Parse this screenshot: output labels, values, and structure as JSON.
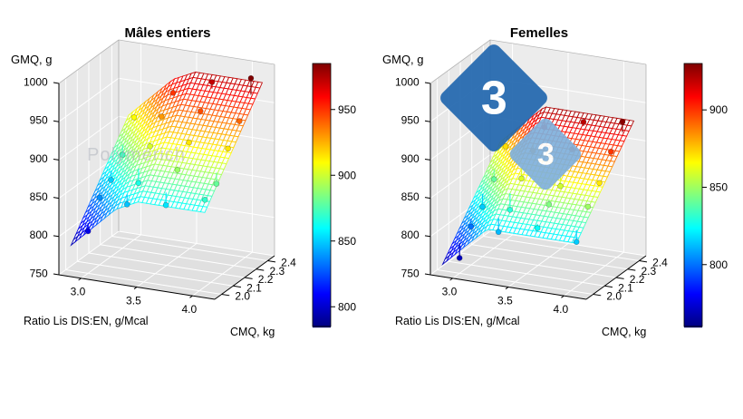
{
  "style": {
    "background": "#ffffff",
    "wall": "#e8e8e8",
    "back_wall": "#ececec",
    "floor": "#e0e0e0",
    "grid_line": "#ffffff",
    "axis_color": "#000000",
    "logo_blue": "#2166ae",
    "logo_light_blue": "#7fb0dc",
    "watermark_gray": "#a9aeb8"
  },
  "watermarks": {
    "brand_text": "Polymerich",
    "logo_digit_big": "3",
    "logo_digit_small": "3"
  },
  "chart_data": [
    {
      "type": "surface",
      "title": "Mâles entiers",
      "xlabel": "Ratio Lis DIS:EN, g/Mcal",
      "ylabel": "CMQ, kg",
      "zlabel": "GMQ, g",
      "xlim": [
        2.8,
        4.2
      ],
      "ylim": [
        1.94,
        2.46
      ],
      "zlim": [
        750,
        1000
      ],
      "x_tick_values": [
        3.0,
        3.5,
        4.0
      ],
      "x_tick_labels": [
        "3.0",
        "3.5",
        "4.0"
      ],
      "y_tick_values": [
        2.0,
        2.1,
        2.2,
        2.3,
        2.4
      ],
      "y_tick_labels": [
        "2.0",
        "2.1",
        "2.2",
        "2.3",
        "2.4"
      ],
      "z_tick_values": [
        750,
        800,
        850,
        900,
        950,
        1000
      ],
      "z_tick_labels": [
        "750",
        "800",
        "850",
        "900",
        "950",
        "1000"
      ],
      "grid_x": [
        2.9,
        3.1,
        3.3,
        3.5,
        3.7,
        3.9,
        4.1
      ],
      "grid_y": [
        1.95,
        2.05,
        2.15,
        2.25,
        2.35,
        2.45
      ],
      "z_grid": [
        [
          790,
          818,
          846,
          860,
          860,
          860,
          860
        ],
        [
          813,
          841,
          869,
          883,
          883,
          883,
          883
        ],
        [
          836,
          864,
          892,
          906,
          906,
          906,
          906
        ],
        [
          859,
          887,
          915,
          929,
          929,
          929,
          929
        ],
        [
          882,
          910,
          938,
          952,
          952,
          952,
          952
        ],
        [
          905,
          933,
          961,
          975,
          975,
          975,
          975
        ]
      ],
      "points": [
        [
          3.0,
          2.0,
          805
        ],
        [
          3.0,
          2.1,
          838
        ],
        [
          3.0,
          2.2,
          850
        ],
        [
          3.0,
          2.3,
          872
        ],
        [
          3.0,
          2.4,
          910
        ],
        [
          3.35,
          2.0,
          848
        ],
        [
          3.35,
          2.1,
          865
        ],
        [
          3.35,
          2.2,
          902
        ],
        [
          3.35,
          2.3,
          930
        ],
        [
          3.35,
          2.4,
          950
        ],
        [
          3.7,
          2.0,
          855
        ],
        [
          3.7,
          2.1,
          890
        ],
        [
          3.7,
          2.2,
          915
        ],
        [
          3.7,
          2.3,
          945
        ],
        [
          3.7,
          2.4,
          972
        ],
        [
          4.05,
          2.0,
          870
        ],
        [
          4.05,
          2.1,
          880
        ],
        [
          4.05,
          2.2,
          915
        ],
        [
          4.05,
          2.3,
          940
        ],
        [
          4.05,
          2.4,
          985
        ]
      ],
      "colorbar": {
        "vmin": 785,
        "vmax": 985,
        "tick_values": [
          800,
          850,
          900,
          950
        ],
        "tick_labels": [
          "800",
          "850",
          "900",
          "950"
        ]
      }
    },
    {
      "type": "surface",
      "title": "Femelles",
      "xlabel": "Ratio Lis DIS:EN, g/Mcal",
      "ylabel": "CMQ, kg",
      "zlabel": "GMQ, g",
      "xlim": [
        2.8,
        4.2
      ],
      "ylim": [
        1.94,
        2.46
      ],
      "zlim": [
        750,
        1000
      ],
      "x_tick_values": [
        3.0,
        3.5,
        4.0
      ],
      "x_tick_labels": [
        "3.0",
        "3.5",
        "4.0"
      ],
      "y_tick_values": [
        2.0,
        2.1,
        2.2,
        2.3,
        2.4
      ],
      "y_tick_labels": [
        "2.0",
        "2.1",
        "2.2",
        "2.3",
        "2.4"
      ],
      "z_tick_values": [
        750,
        800,
        850,
        900,
        950,
        1000
      ],
      "z_tick_labels": [
        "750",
        "800",
        "850",
        "900",
        "950",
        "1000"
      ],
      "grid_x": [
        2.9,
        3.1,
        3.3,
        3.5,
        3.7,
        3.9,
        4.1
      ],
      "grid_y": [
        1.95,
        2.05,
        2.15,
        2.25,
        2.35,
        2.45
      ],
      "z_grid": [
        [
          765,
          793,
          820,
          820,
          820,
          820,
          820
        ],
        [
          786,
          814,
          841,
          841,
          841,
          841,
          841
        ],
        [
          807,
          835,
          862,
          862,
          862,
          862,
          862
        ],
        [
          828,
          856,
          883,
          883,
          883,
          883,
          883
        ],
        [
          849,
          877,
          904,
          904,
          904,
          904,
          904
        ],
        [
          870,
          898,
          925,
          925,
          925,
          925,
          925
        ]
      ],
      "points": [
        [
          3.0,
          2.0,
          770
        ],
        [
          3.0,
          2.1,
          800
        ],
        [
          3.0,
          2.2,
          815
        ],
        [
          3.0,
          2.3,
          840
        ],
        [
          3.0,
          2.4,
          872
        ],
        [
          3.35,
          2.0,
          812
        ],
        [
          3.35,
          2.1,
          830
        ],
        [
          3.35,
          2.2,
          860
        ],
        [
          3.35,
          2.3,
          885
        ],
        [
          3.35,
          2.4,
          905
        ],
        [
          3.7,
          2.0,
          825
        ],
        [
          3.7,
          2.1,
          845
        ],
        [
          3.7,
          2.2,
          858
        ],
        [
          3.7,
          2.3,
          895
        ],
        [
          3.7,
          2.4,
          920
        ],
        [
          4.05,
          2.0,
          815
        ],
        [
          4.05,
          2.1,
          850
        ],
        [
          4.05,
          2.2,
          870
        ],
        [
          4.05,
          2.3,
          900
        ],
        [
          4.05,
          2.4,
          928
        ]
      ],
      "colorbar": {
        "vmin": 760,
        "vmax": 930,
        "tick_values": [
          800,
          850,
          900
        ],
        "tick_labels": [
          "800",
          "850",
          "900"
        ]
      }
    }
  ]
}
